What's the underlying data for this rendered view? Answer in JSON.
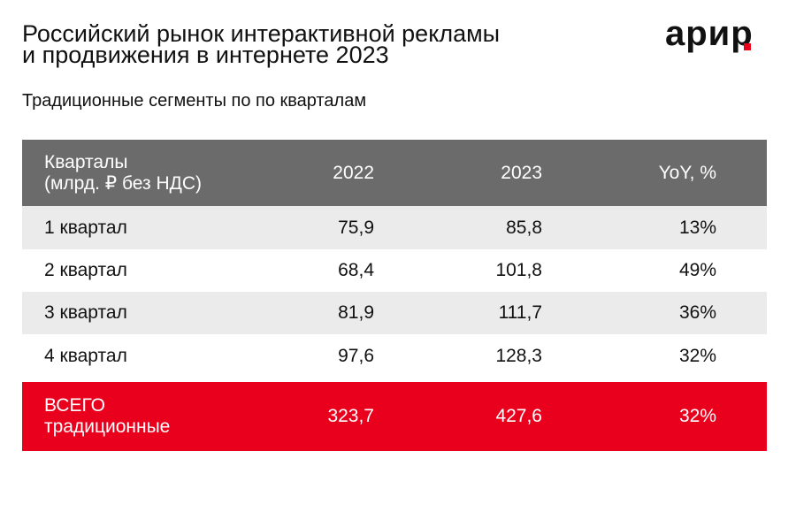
{
  "header": {
    "title_lines": [
      "Российский рынок интерактивной рекламы",
      "и продвижения в интернете 2023"
    ],
    "subtitle": "Традиционные сегменты по по кварталам",
    "logo": "арир"
  },
  "table": {
    "columns": [
      [
        "Кварталы",
        "(млрд. ₽ без НДС)"
      ],
      "2022",
      "2023",
      "YoY, %"
    ],
    "rows": [
      [
        "1 квартал",
        "75,9",
        "85,8",
        "13%"
      ],
      [
        "2 квартал",
        "68,4",
        "101,8",
        "49%"
      ],
      [
        "3 квартал",
        "81,9",
        "111,7",
        "36%"
      ],
      [
        "4 квартал",
        "97,6",
        "128,3",
        "32%"
      ]
    ],
    "total": [
      [
        "ВСЕГО",
        "традиционные"
      ],
      "323,7",
      "427,6",
      "32%"
    ]
  }
}
